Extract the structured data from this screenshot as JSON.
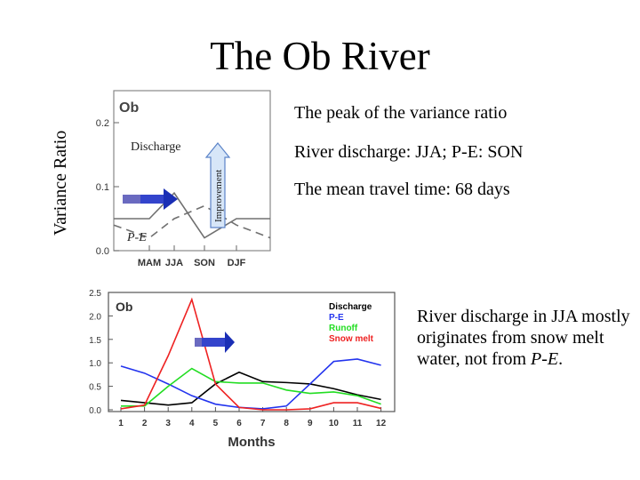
{
  "slide": {
    "title": "The Ob River",
    "y_axis_title": "Variance Ratio",
    "bullets": [
      "The peak of the variance ratio",
      "River discharge: JJA; P-E: SON",
      "The mean travel time: 68 days"
    ],
    "note_text": "River discharge in JJA mostly originates from snow melt water, not from ",
    "note_em": "P-E",
    "note_end": ".",
    "callouts": {
      "discharge": "Discharge",
      "pe": "P-E",
      "improvement": "Improvement"
    }
  },
  "chart_data": [
    {
      "type": "line",
      "title": "Ob",
      "categories": [
        "MAM",
        "JJA",
        "SON",
        "DJF"
      ],
      "ylim": [
        0,
        0.25
      ],
      "yticks": [
        "0.0",
        "0.1",
        "0.2"
      ],
      "series": [
        {
          "name": "Discharge",
          "style": "solid",
          "color": "#707070",
          "values": [
            0.05,
            0.09,
            0.02,
            0.05
          ]
        },
        {
          "name": "P-E",
          "style": "dashed",
          "color": "#707070",
          "values": [
            0.02,
            0.05,
            0.07,
            0.04
          ]
        }
      ]
    },
    {
      "type": "line",
      "title": "Ob",
      "xlabel": "Months",
      "categories": [
        "1",
        "2",
        "3",
        "4",
        "5",
        "6",
        "7",
        "8",
        "9",
        "10",
        "11",
        "12"
      ],
      "ylim": [
        0,
        2.5
      ],
      "yticks": [
        "0.0",
        "0.5",
        "1.0",
        "1.5",
        "2.0",
        "2.5"
      ],
      "legend_position": "top-right",
      "series": [
        {
          "name": "Discharge",
          "color": "#000000",
          "values": [
            0.2,
            0.15,
            0.1,
            0.15,
            0.55,
            0.8,
            0.6,
            0.58,
            0.55,
            0.45,
            0.32,
            0.22
          ]
        },
        {
          "name": "P-E",
          "color": "#2233ee",
          "values": [
            0.93,
            0.78,
            0.55,
            0.3,
            0.12,
            0.05,
            0.02,
            0.08,
            0.55,
            1.03,
            1.08,
            0.95
          ]
        },
        {
          "name": "Runoff",
          "color": "#22dd22",
          "values": [
            0.08,
            0.08,
            0.5,
            0.88,
            0.6,
            0.57,
            0.57,
            0.42,
            0.35,
            0.38,
            0.3,
            0.12
          ]
        },
        {
          "name": "Snow melt",
          "color": "#ee2222",
          "values": [
            0.02,
            0.1,
            1.15,
            2.35,
            0.55,
            0.05,
            0.0,
            0.0,
            0.02,
            0.15,
            0.15,
            0.03
          ]
        }
      ]
    }
  ]
}
